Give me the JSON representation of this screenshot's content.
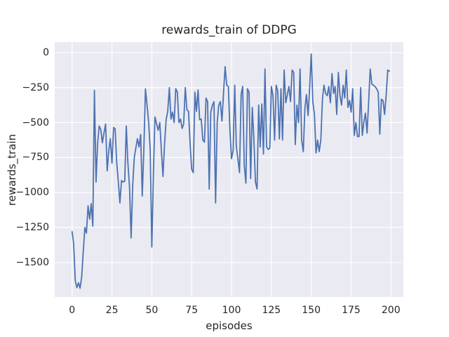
{
  "window": {
    "background": "#ffffff"
  },
  "figure": {
    "title": "rewards_train of DDPG",
    "xlabel": "episodes",
    "ylabel": "rewards_train"
  },
  "chart_data": {
    "type": "line",
    "title": "rewards_train of DDPG",
    "xlabel": "episodes",
    "ylabel": "rewards_train",
    "style": "seaborn-darkgrid",
    "grid": true,
    "legend": "none",
    "plot_bg_color": "#eaeaf2",
    "grid_color": "#ffffff",
    "line_color": "#4c72b0",
    "text_color": "#262626",
    "xlim": [
      -10.9,
      207.8
    ],
    "ylim": [
      -1747,
      75
    ],
    "x_ticks": [
      0,
      25,
      50,
      75,
      100,
      125,
      150,
      175,
      200
    ],
    "x_tick_labels": [
      "0",
      "25",
      "50",
      "75",
      "100",
      "125",
      "150",
      "175",
      "200"
    ],
    "y_ticks": [
      0,
      -250,
      -500,
      -750,
      -1000,
      -1250,
      -1500
    ],
    "y_tick_labels": [
      "0",
      "−250",
      "−500",
      "−750",
      "−1000",
      "−1250",
      "−1500"
    ],
    "x_range": [
      0,
      199
    ],
    "x_step": 1,
    "series": [
      {
        "name": "rewards_train",
        "values": [
          -1280,
          -1365,
          -1630,
          -1680,
          -1645,
          -1685,
          -1605,
          -1420,
          -1250,
          -1290,
          -1095,
          -1190,
          -1080,
          -1240,
          -270,
          -925,
          -650,
          -525,
          -550,
          -645,
          -575,
          -510,
          -845,
          -705,
          -615,
          -790,
          -535,
          -545,
          -790,
          -925,
          -1075,
          -915,
          -925,
          -920,
          -525,
          -790,
          -960,
          -1325,
          -955,
          -750,
          -680,
          -615,
          -675,
          -585,
          -1025,
          -700,
          -260,
          -375,
          -500,
          -690,
          -1390,
          -860,
          -460,
          -508,
          -555,
          -500,
          -700,
          -885,
          -650,
          -480,
          -420,
          -250,
          -475,
          -425,
          -500,
          -258,
          -283,
          -500,
          -475,
          -542,
          -510,
          -250,
          -408,
          -420,
          -642,
          -833,
          -858,
          -283,
          -420,
          -267,
          -480,
          -475,
          -625,
          -640,
          -325,
          -350,
          -975,
          -425,
          -375,
          -350,
          -1075,
          -500,
          -375,
          -350,
          -490,
          -280,
          -100,
          -233,
          -242,
          -550,
          -758,
          -700,
          -233,
          -667,
          -760,
          -858,
          -300,
          -242,
          -808,
          -933,
          -258,
          -283,
          -900,
          -392,
          -608,
          -925,
          -975,
          -375,
          -675,
          -367,
          -725,
          -117,
          -675,
          -692,
          -683,
          -242,
          -308,
          -625,
          -233,
          -275,
          -617,
          -258,
          -625,
          -125,
          -358,
          -300,
          -242,
          -350,
          -125,
          -142,
          -658,
          -375,
          -500,
          -117,
          -625,
          -708,
          -400,
          -300,
          -450,
          -250,
          -10,
          -350,
          -442,
          -717,
          -625,
          -708,
          -625,
          -333,
          -233,
          -292,
          -308,
          -242,
          -358,
          -150,
          -292,
          -242,
          -442,
          -142,
          -308,
          -375,
          -233,
          -325,
          -125,
          -392,
          -342,
          -425,
          -258,
          -592,
          -500,
          -600,
          -600,
          -250,
          -592,
          -500,
          -433,
          -575,
          -350,
          -117,
          -225,
          -233,
          -242,
          -258,
          -283,
          -583,
          -333,
          -342,
          -442,
          -300,
          -125,
          -133
        ]
      }
    ]
  }
}
